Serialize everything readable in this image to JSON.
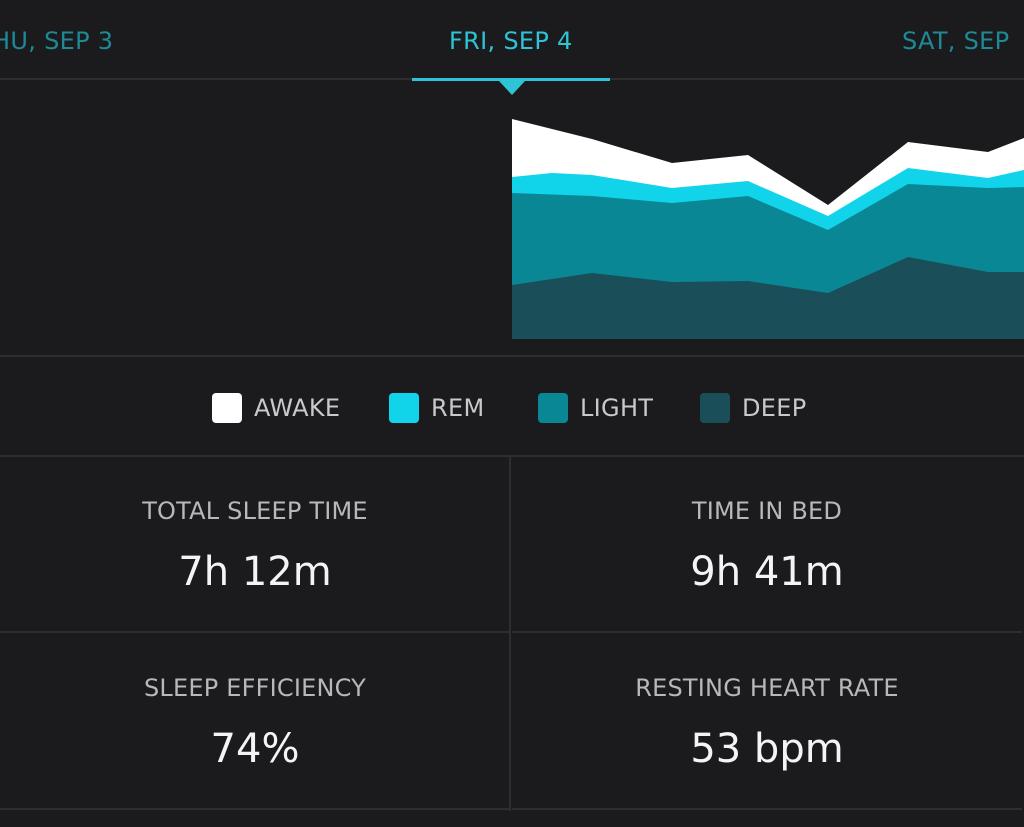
{
  "date_nav": {
    "prev": "HU, SEP 3",
    "current": "FRI, SEP 4",
    "next": "SAT, SEP"
  },
  "colors": {
    "background": "#1b1b1e",
    "accent": "#2ec4d6",
    "awake": "#ffffff",
    "rem": "#11d4ea",
    "light": "#0a8795",
    "deep": "#1a4f59"
  },
  "chart_data": {
    "type": "area",
    "stacked": true,
    "series": [
      {
        "name": "AWAKE"
      },
      {
        "name": "REM"
      },
      {
        "name": "LIGHT"
      },
      {
        "name": "DEEP"
      }
    ]
  },
  "legend": {
    "items": [
      {
        "label": "AWAKE",
        "color": "#ffffff"
      },
      {
        "label": "REM",
        "color": "#11d4ea"
      },
      {
        "label": "LIGHT",
        "color": "#0a8795"
      },
      {
        "label": "DEEP",
        "color": "#1a4f59"
      }
    ]
  },
  "stats": {
    "total_sleep": {
      "label": "TOTAL SLEEP TIME",
      "value": "7h 12m"
    },
    "time_in_bed": {
      "label": "TIME IN BED",
      "value": "9h 41m"
    },
    "efficiency": {
      "label": "SLEEP EFFICIENCY",
      "value": "74%"
    },
    "resting_hr": {
      "label": "RESTING HEART RATE",
      "value": "53 bpm"
    }
  }
}
